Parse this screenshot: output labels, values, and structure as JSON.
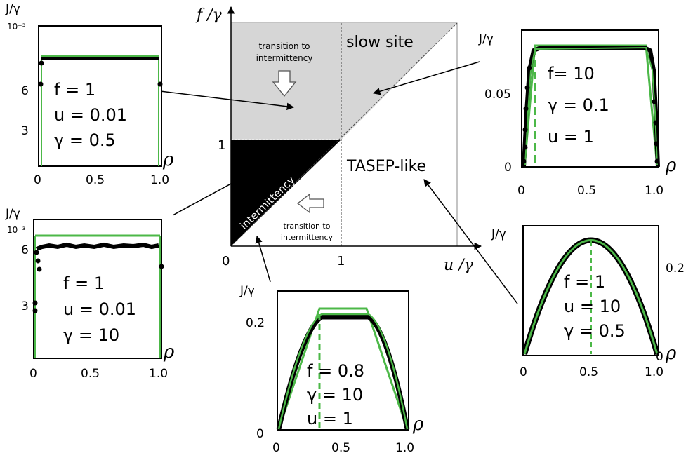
{
  "phase_diagram": {
    "y_axis_label": "f /γ",
    "x_axis_label": "u /γ",
    "tick_0": "0",
    "tick_x1": "1",
    "tick_y1": "1",
    "region_slow_site": "slow site",
    "region_tasep": "TASEP-like",
    "region_intermittency": "intermittency",
    "transition_top": [
      "transition to",
      "intermittency"
    ],
    "transition_bottom": [
      "transition to",
      "intermittency"
    ],
    "colors": {
      "shaded": "#d6d6d6",
      "intermittency": "#000000"
    }
  },
  "insets": [
    {
      "id": "top-left",
      "y_label": "J/γ",
      "y_unit": "10⁻³",
      "rho_label": "ρ",
      "y_ticks": [
        "6",
        "3"
      ],
      "x_ticks": [
        "0",
        "0.5",
        "1.0"
      ],
      "params": [
        "f = 1",
        "u = 0.01",
        "γ = 0.5"
      ]
    },
    {
      "id": "mid-left",
      "y_label": "J/γ",
      "y_unit": "10⁻³",
      "rho_label": "ρ",
      "y_ticks": [
        "6",
        "3"
      ],
      "x_ticks": [
        "0",
        "0.5",
        "1.0"
      ],
      "params": [
        "f = 1",
        "u = 0.01",
        "γ = 10"
      ]
    },
    {
      "id": "bottom-center",
      "y_label": "J/γ",
      "rho_label": "ρ",
      "y_ticks": [
        "0.2",
        "0"
      ],
      "x_ticks": [
        "0",
        "0.5",
        "1.0"
      ],
      "params": [
        "f = 0.8",
        "γ = 10",
        "u = 1"
      ]
    },
    {
      "id": "top-right",
      "y_label": "J/γ",
      "rho_label": "ρ",
      "y_ticks": [
        "0.05",
        "0"
      ],
      "x_ticks": [
        "0",
        "0.5",
        "1.0"
      ],
      "params": [
        "f= 10",
        "γ = 0.1",
        "u = 1"
      ]
    },
    {
      "id": "bottom-right",
      "y_label": "J/γ",
      "rho_label": "ρ",
      "y_ticks": [
        "0.2",
        "0"
      ],
      "x_ticks": [
        "0",
        "0.5",
        "1.0"
      ],
      "params": [
        "f = 1",
        "u = 10",
        "γ = 0.5"
      ]
    }
  ],
  "colors": {
    "simulation": "#000000",
    "theory": "#4cb848"
  }
}
